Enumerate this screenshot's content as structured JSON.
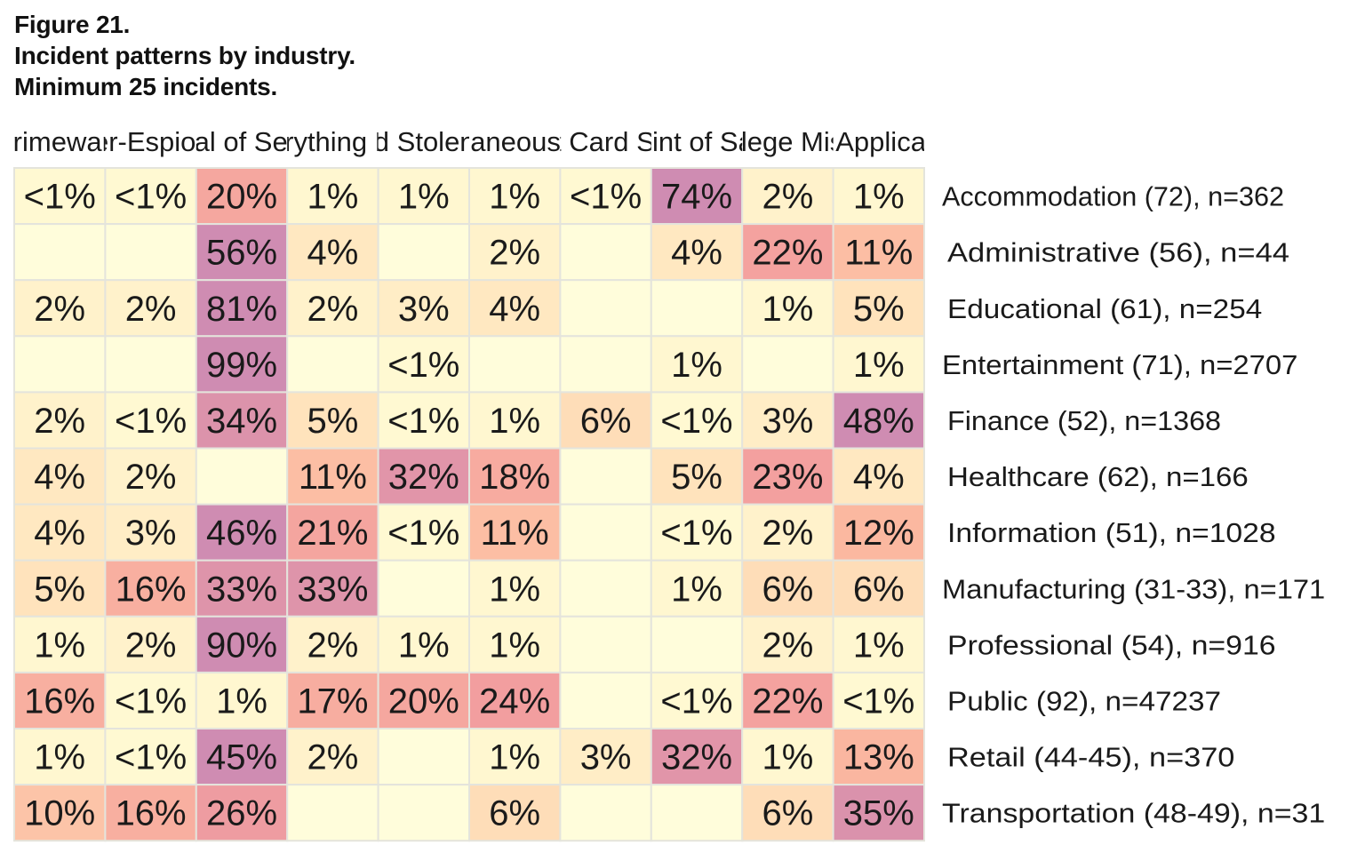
{
  "figure": {
    "title_lines": [
      "Figure 21.",
      "Incident patterns by industry.",
      "Minimum 25 incidents."
    ]
  },
  "chart_data": {
    "type": "heatmap",
    "title": "Incident patterns by industry. Minimum 25 incidents.",
    "xlabel": "",
    "ylabel": "",
    "columns": [
      "Crimeware",
      "Cyber-Espionage",
      "Denial of Service",
      "Everything Else",
      "Lost and Stolen Assets",
      "Miscellaneous Errors",
      "Payment Card Skimmers",
      "Point of Sale",
      "Privilege Misuse",
      "Web Applications"
    ],
    "rows": [
      "Accommodation (72), n=362",
      "Administrative (56), n=44",
      "Educational (61), n=254",
      "Entertainment (71), n=2707",
      "Finance (52), n=1368",
      "Healthcare (62), n=166",
      "Information (51), n=1028",
      "Manufacturing (31-33), n=171",
      "Professional (54), n=916",
      "Public (92), n=47237",
      "Retail (44-45), n=370",
      "Transportation (48-49), n=31"
    ],
    "cells": [
      [
        "<1%",
        "<1%",
        "20%",
        "1%",
        "1%",
        "1%",
        "<1%",
        "74%",
        "2%",
        "1%"
      ],
      [
        "",
        "",
        "56%",
        "4%",
        "",
        "2%",
        "",
        "4%",
        "22%",
        "11%"
      ],
      [
        "2%",
        "2%",
        "81%",
        "2%",
        "3%",
        "4%",
        "",
        "",
        "1%",
        "5%"
      ],
      [
        "",
        "",
        "99%",
        "",
        "<1%",
        "",
        "",
        "1%",
        "",
        "1%"
      ],
      [
        "2%",
        "<1%",
        "34%",
        "5%",
        "<1%",
        "1%",
        "6%",
        "<1%",
        "3%",
        "48%"
      ],
      [
        "4%",
        "2%",
        "",
        "11%",
        "32%",
        "18%",
        "",
        "5%",
        "23%",
        "4%"
      ],
      [
        "4%",
        "3%",
        "46%",
        "21%",
        "<1%",
        "11%",
        "",
        "<1%",
        "2%",
        "12%"
      ],
      [
        "5%",
        "16%",
        "33%",
        "33%",
        "",
        "1%",
        "",
        "1%",
        "6%",
        "6%"
      ],
      [
        "1%",
        "2%",
        "90%",
        "2%",
        "1%",
        "1%",
        "",
        "",
        "2%",
        "1%"
      ],
      [
        "16%",
        "<1%",
        "1%",
        "17%",
        "20%",
        "24%",
        "",
        "<1%",
        "22%",
        "<1%"
      ],
      [
        "1%",
        "<1%",
        "45%",
        "2%",
        "",
        "1%",
        "3%",
        "32%",
        "1%",
        "13%"
      ],
      [
        "10%",
        "16%",
        "26%",
        "",
        "",
        "6%",
        "",
        "",
        "6%",
        "35%"
      ]
    ],
    "values": [
      [
        0.5,
        0.5,
        20,
        1,
        1,
        1,
        0.5,
        74,
        2,
        1
      ],
      [
        null,
        null,
        56,
        4,
        null,
        2,
        null,
        4,
        22,
        11
      ],
      [
        2,
        2,
        81,
        2,
        3,
        4,
        null,
        null,
        1,
        5
      ],
      [
        null,
        null,
        99,
        null,
        0.5,
        null,
        null,
        1,
        null,
        1
      ],
      [
        2,
        0.5,
        34,
        5,
        0.5,
        1,
        6,
        0.5,
        3,
        48
      ],
      [
        4,
        2,
        null,
        11,
        32,
        18,
        null,
        5,
        23,
        4
      ],
      [
        4,
        3,
        46,
        21,
        0.5,
        11,
        null,
        0.5,
        2,
        12
      ],
      [
        5,
        16,
        33,
        33,
        null,
        1,
        null,
        1,
        6,
        6
      ],
      [
        1,
        2,
        90,
        2,
        1,
        1,
        null,
        null,
        2,
        1
      ],
      [
        16,
        0.5,
        1,
        17,
        20,
        24,
        null,
        0.5,
        22,
        0.5
      ],
      [
        1,
        0.5,
        45,
        2,
        null,
        1,
        3,
        32,
        1,
        13
      ],
      [
        10,
        16,
        26,
        null,
        null,
        6,
        null,
        null,
        6,
        35
      ]
    ],
    "palette": {
      "empty": "#fffddb",
      "stops": [
        "#fff9d2",
        "#ffe3bc",
        "#fbb8a0",
        "#f29e9f",
        "#cf8cb2"
      ]
    }
  }
}
